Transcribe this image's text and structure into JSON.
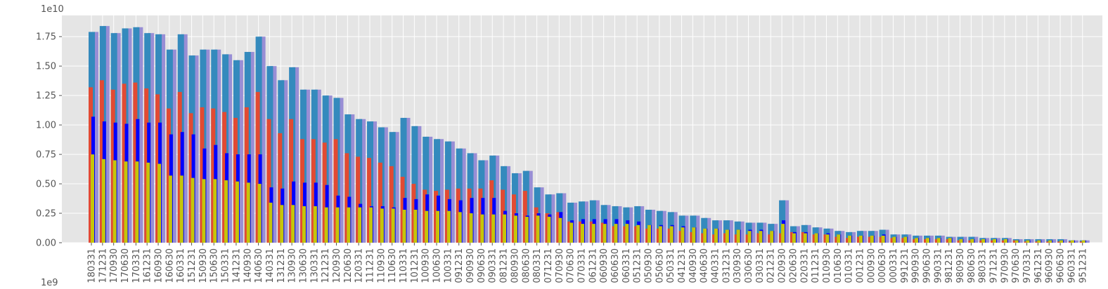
{
  "chart_data": {
    "type": "bar",
    "title": "",
    "xlabel": "",
    "ylabel": "",
    "y_offset_label": "1e10",
    "x_offset_label": "1e9",
    "ylim": [
      0,
      1.93
    ],
    "yticks": [
      0.0,
      0.25,
      0.5,
      0.75,
      1.0,
      1.25,
      1.5,
      1.75
    ],
    "ytick_labels": [
      "0.00",
      "0.25",
      "0.50",
      "0.75",
      "1.00",
      "1.25",
      "1.50",
      "1.75"
    ],
    "grid": true,
    "legend": "none",
    "categories": [
      "180331",
      "171231",
      "170930",
      "170630",
      "170331",
      "161231",
      "160930",
      "160630",
      "160331",
      "151231",
      "150930",
      "150630",
      "150331",
      "141231",
      "140930",
      "140630",
      "140331",
      "131231",
      "130930",
      "130630",
      "130331",
      "121231",
      "120930",
      "120630",
      "120331",
      "111231",
      "110930",
      "110630",
      "110331",
      "101231",
      "100930",
      "100630",
      "100331",
      "091231",
      "090930",
      "090630",
      "090331",
      "081231",
      "080930",
      "080630",
      "080331",
      "071231",
      "070930",
      "070630",
      "070331",
      "061231",
      "060930",
      "060630",
      "060331",
      "051231",
      "050930",
      "050630",
      "050331",
      "041231",
      "040930",
      "040630",
      "040331",
      "031231",
      "030930",
      "030630",
      "030331",
      "021231",
      "020930",
      "020630",
      "020331",
      "011231",
      "010930",
      "010630",
      "010331",
      "001231",
      "000930",
      "000630",
      "000331",
      "991231",
      "990930",
      "990630",
      "990331",
      "981231",
      "980930",
      "980630",
      "980331",
      "971231",
      "970930",
      "970630",
      "970331",
      "961231",
      "960930",
      "960630",
      "960331",
      "951231"
    ],
    "series": [
      {
        "color_front": "#348abd",
        "color_back": "#988ed5",
        "values": [
          1.79,
          1.84,
          1.78,
          1.82,
          1.83,
          1.78,
          1.77,
          1.64,
          1.77,
          1.59,
          1.64,
          1.64,
          1.6,
          1.55,
          1.62,
          1.75,
          1.5,
          1.38,
          1.49,
          1.3,
          1.3,
          1.25,
          1.23,
          1.09,
          1.05,
          1.03,
          0.98,
          0.94,
          1.06,
          0.99,
          0.9,
          0.88,
          0.86,
          0.8,
          0.76,
          0.7,
          0.74,
          0.65,
          0.59,
          0.61,
          0.47,
          0.41,
          0.42,
          0.34,
          0.35,
          0.36,
          0.32,
          0.31,
          0.3,
          0.31,
          0.28,
          0.27,
          0.26,
          0.23,
          0.23,
          0.21,
          0.19,
          0.19,
          0.18,
          0.17,
          0.17,
          0.16,
          0.36,
          0.14,
          0.15,
          0.13,
          0.12,
          0.1,
          0.09,
          0.1,
          0.1,
          0.11,
          0.07,
          0.07,
          0.06,
          0.06,
          0.06,
          0.05,
          0.05,
          0.05,
          0.04,
          0.04,
          0.04,
          0.03,
          0.03,
          0.03,
          0.03,
          0.03,
          0.02,
          0.02
        ]
      },
      {
        "color": "#e24a33",
        "values": [
          1.32,
          1.38,
          1.3,
          1.35,
          1.36,
          1.31,
          1.26,
          1.14,
          1.28,
          1.1,
          1.15,
          1.14,
          1.11,
          1.06,
          1.15,
          1.28,
          1.05,
          0.93,
          1.05,
          0.88,
          0.88,
          0.85,
          0.88,
          0.76,
          0.73,
          0.72,
          0.68,
          0.65,
          0.56,
          0.5,
          0.45,
          0.44,
          0.45,
          0.46,
          0.46,
          0.46,
          0.53,
          0.45,
          0.41,
          0.44,
          0.3,
          0.25,
          0.26,
          0.18,
          0.18,
          0.18,
          0.17,
          0.14,
          0.14,
          0.14,
          0.12,
          0.12,
          0.12,
          0.1,
          0.09,
          0.08,
          0.07,
          0.08,
          0.07,
          0.07,
          0.08,
          0.07,
          0.08,
          0.09,
          0.09,
          0.07,
          0.07,
          0.05,
          0.04,
          0.05,
          0.05,
          0.05,
          0.04,
          0.04,
          0.03,
          0.03,
          0.03,
          0.03,
          0.02,
          0.02,
          0.02,
          0.02,
          0.02,
          0.02,
          0.01,
          0.01,
          0.01,
          0.01,
          0.01,
          0.01
        ]
      },
      {
        "color": "#0000ff",
        "values": [
          1.07,
          1.03,
          1.02,
          1.01,
          1.05,
          1.02,
          1.02,
          0.92,
          0.94,
          0.92,
          0.8,
          0.83,
          0.76,
          0.75,
          0.75,
          0.75,
          0.47,
          0.46,
          0.52,
          0.51,
          0.51,
          0.49,
          0.4,
          0.39,
          0.33,
          0.31,
          0.31,
          0.3,
          0.38,
          0.37,
          0.41,
          0.4,
          0.37,
          0.36,
          0.38,
          0.38,
          0.38,
          0.27,
          0.25,
          0.23,
          0.25,
          0.24,
          0.26,
          0.19,
          0.2,
          0.2,
          0.2,
          0.2,
          0.19,
          0.18,
          0.15,
          0.15,
          0.15,
          0.14,
          0.13,
          0.12,
          0.12,
          0.11,
          0.11,
          0.11,
          0.11,
          0.1,
          0.19,
          0.09,
          0.09,
          0.08,
          0.08,
          0.07,
          0.06,
          0.06,
          0.06,
          0.07,
          0.05,
          0.05,
          0.04,
          0.04,
          0.04,
          0.04,
          0.03,
          0.03,
          0.03,
          0.03,
          0.03,
          0.02,
          0.02,
          0.02,
          0.02,
          0.02,
          0.02,
          0.02
        ]
      },
      {
        "color": "#c5c50a",
        "values": [
          0.75,
          0.71,
          0.7,
          0.69,
          0.69,
          0.68,
          0.67,
          0.57,
          0.57,
          0.55,
          0.54,
          0.54,
          0.53,
          0.52,
          0.51,
          0.5,
          0.34,
          0.32,
          0.32,
          0.31,
          0.31,
          0.3,
          0.3,
          0.3,
          0.3,
          0.3,
          0.29,
          0.29,
          0.28,
          0.28,
          0.27,
          0.27,
          0.27,
          0.26,
          0.25,
          0.24,
          0.24,
          0.24,
          0.23,
          0.22,
          0.23,
          0.22,
          0.21,
          0.17,
          0.16,
          0.16,
          0.16,
          0.16,
          0.16,
          0.15,
          0.15,
          0.14,
          0.14,
          0.13,
          0.13,
          0.12,
          0.12,
          0.11,
          0.11,
          0.1,
          0.1,
          0.1,
          0.16,
          0.08,
          0.08,
          0.08,
          0.07,
          0.07,
          0.06,
          0.06,
          0.06,
          0.06,
          0.05,
          0.05,
          0.04,
          0.04,
          0.04,
          0.04,
          0.03,
          0.03,
          0.03,
          0.03,
          0.03,
          0.02,
          0.02,
          0.02,
          0.02,
          0.02,
          0.02,
          0.02
        ]
      }
    ]
  }
}
